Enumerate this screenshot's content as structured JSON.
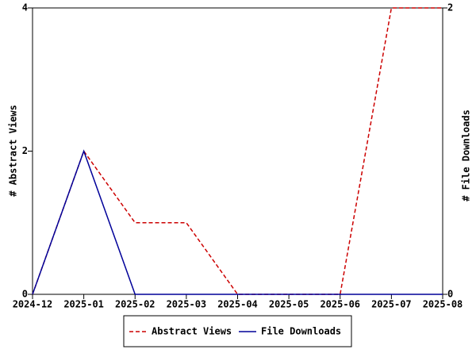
{
  "chart_data": {
    "type": "line",
    "categories": [
      "2024-12",
      "2025-01",
      "2025-02",
      "2025-03",
      "2025-04",
      "2025-05",
      "2025-06",
      "2025-07",
      "2025-08"
    ],
    "series": [
      {
        "name": "Abstract Views",
        "color": "#cc0000",
        "dashed": true,
        "values": [
          0,
          2,
          1,
          1,
          0,
          0,
          0,
          4,
          4
        ]
      },
      {
        "name": "File Downloads",
        "color": "#000099",
        "dashed": false,
        "axis": "y2",
        "values": [
          0,
          1,
          0,
          0,
          0,
          0,
          0,
          0,
          0
        ]
      }
    ],
    "ylabel": "# Abstract Views",
    "y2label": "# File Downloads",
    "ylim": [
      0,
      4
    ],
    "yticks": [
      0,
      2,
      4
    ],
    "y2lim": [
      0,
      2
    ],
    "y2ticks": [
      0,
      2
    ],
    "legend": "bottom"
  }
}
